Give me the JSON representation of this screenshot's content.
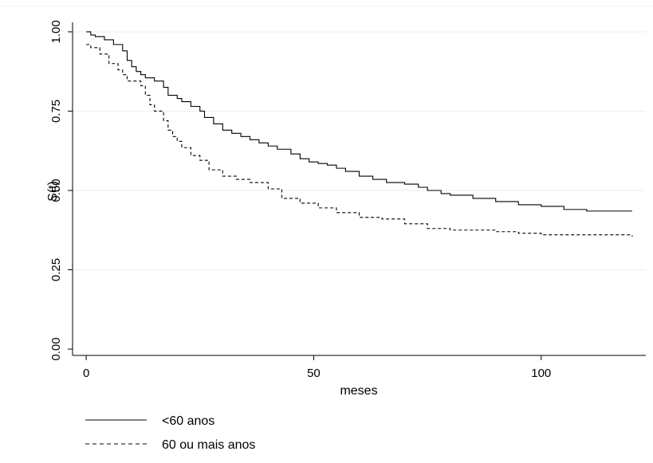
{
  "chart_data": {
    "type": "line",
    "xlabel": "meses",
    "ylabel": "S(t)",
    "xlim": [
      -3,
      123
    ],
    "ylim": [
      -0.02,
      1.03
    ],
    "x_ticks": [
      0,
      50,
      100
    ],
    "y_ticks": [
      0.0,
      0.25,
      0.5,
      0.75,
      1.0
    ],
    "x_tick_labels": [
      "0",
      "50",
      "100"
    ],
    "y_tick_labels": [
      "0.00",
      "0.25",
      "0.50",
      "0.75",
      "1.00"
    ],
    "grid": "horizontal",
    "legend_position": "bottom-left",
    "series": [
      {
        "name": "<60 anos",
        "style": "solid",
        "color": "#000000",
        "step": true,
        "x": [
          0,
          1,
          2,
          4,
          6,
          8,
          9,
          10,
          11,
          12,
          13,
          15,
          17,
          18,
          20,
          21,
          23,
          25,
          26,
          28,
          30,
          32,
          34,
          36,
          38,
          40,
          42,
          45,
          47,
          49,
          51,
          53,
          55,
          57,
          60,
          63,
          66,
          70,
          73,
          75,
          78,
          80,
          85,
          90,
          95,
          100,
          105,
          110,
          120
        ],
        "y": [
          1.0,
          0.99,
          0.985,
          0.975,
          0.96,
          0.94,
          0.91,
          0.89,
          0.875,
          0.865,
          0.855,
          0.845,
          0.825,
          0.8,
          0.79,
          0.78,
          0.765,
          0.75,
          0.73,
          0.71,
          0.69,
          0.68,
          0.67,
          0.66,
          0.65,
          0.64,
          0.63,
          0.615,
          0.6,
          0.59,
          0.585,
          0.58,
          0.57,
          0.56,
          0.545,
          0.535,
          0.525,
          0.52,
          0.51,
          0.5,
          0.49,
          0.485,
          0.475,
          0.465,
          0.455,
          0.45,
          0.44,
          0.435,
          0.435
        ]
      },
      {
        "name": "60 ou mais anos",
        "style": "dashed",
        "color": "#000000",
        "step": true,
        "x": [
          0,
          1,
          3,
          5,
          7,
          8,
          9,
          12,
          13,
          14,
          15,
          17,
          18,
          19,
          20,
          21,
          23,
          25,
          27,
          30,
          33,
          36,
          40,
          43,
          47,
          51,
          55,
          60,
          65,
          70,
          75,
          80,
          90,
          95,
          100,
          110,
          120
        ],
        "y": [
          0.96,
          0.95,
          0.93,
          0.9,
          0.88,
          0.865,
          0.845,
          0.83,
          0.8,
          0.77,
          0.75,
          0.72,
          0.69,
          0.67,
          0.655,
          0.635,
          0.61,
          0.595,
          0.565,
          0.545,
          0.535,
          0.525,
          0.505,
          0.475,
          0.46,
          0.445,
          0.43,
          0.415,
          0.41,
          0.395,
          0.38,
          0.375,
          0.37,
          0.365,
          0.36,
          0.36,
          0.355
        ]
      }
    ]
  }
}
